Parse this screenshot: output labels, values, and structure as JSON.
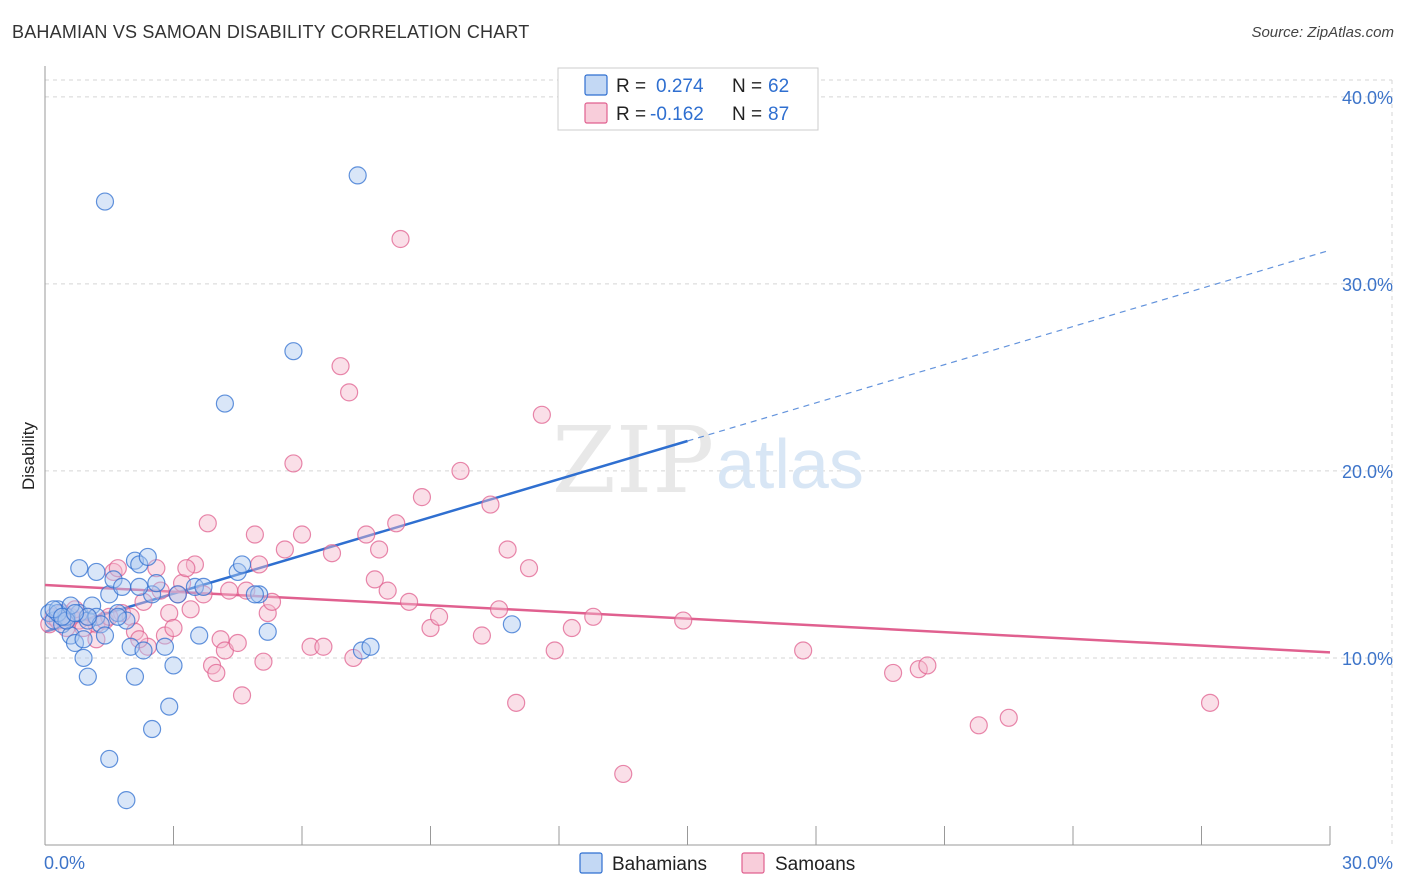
{
  "header": {
    "title": "BAHAMIAN VS SAMOAN DISABILITY CORRELATION CHART",
    "source": "Source: ZipAtlas.com"
  },
  "watermark": {
    "zip": "ZIP",
    "atlas": "atlas"
  },
  "colors": {
    "blue": "#2f6fd0",
    "blue_fill": "#aac8f0",
    "pink": "#e0608f",
    "pink_fill": "#f5b8cb",
    "grid": "#d5d5d5",
    "axis_label": "#3d74c9"
  },
  "legend": {
    "rows": [
      {
        "r_label": "R =",
        "r_value": "0.274",
        "n_label": "N =",
        "n_value": "62"
      },
      {
        "r_label": "R =",
        "r_value": "-0.162",
        "n_label": "N =",
        "n_value": "87"
      }
    ]
  },
  "chart_data": {
    "type": "scatter",
    "title": "BAHAMIAN VS SAMOAN DISABILITY CORRELATION CHART",
    "xlabel": "",
    "ylabel": "Disability",
    "xlim": [
      0,
      30
    ],
    "ylim": [
      0,
      40
    ],
    "x_ticks": [
      0,
      3,
      6,
      9,
      12,
      15,
      18,
      21,
      24,
      27,
      30
    ],
    "x_tick_labels_shown": [
      "0.0%",
      "30.0%"
    ],
    "y_ticks": [
      10,
      20,
      30,
      40
    ],
    "y_tick_labels": [
      "10.0%",
      "20.0%",
      "30.0%",
      "40.0%"
    ],
    "grid": true,
    "legend_position": "top-center",
    "series": [
      {
        "name": "Bahamians",
        "color": "#2f6fd0",
        "r": 0.274,
        "n": 62,
        "trend": {
          "x0": 0,
          "y0": 11.4,
          "x1": 15,
          "y1": 21.6,
          "x_end_dashed": 30,
          "y_end_dashed": 31.8
        },
        "points": [
          [
            0.1,
            12.4
          ],
          [
            0.2,
            12.0
          ],
          [
            0.3,
            12.6
          ],
          [
            0.4,
            11.8
          ],
          [
            0.5,
            12.2
          ],
          [
            0.6,
            11.2
          ],
          [
            0.7,
            10.8
          ],
          [
            0.8,
            12.4
          ],
          [
            0.9,
            11.0
          ],
          [
            1.0,
            12.0
          ],
          [
            0.8,
            14.8
          ],
          [
            1.1,
            12.8
          ],
          [
            1.2,
            12.2
          ],
          [
            1.3,
            11.8
          ],
          [
            1.4,
            11.2
          ],
          [
            1.5,
            13.4
          ],
          [
            1.6,
            14.2
          ],
          [
            1.7,
            12.4
          ],
          [
            1.8,
            13.8
          ],
          [
            1.9,
            12.0
          ],
          [
            2.0,
            10.6
          ],
          [
            2.1,
            15.2
          ],
          [
            2.2,
            15.0
          ],
          [
            2.3,
            10.4
          ],
          [
            2.4,
            15.4
          ],
          [
            2.5,
            13.4
          ],
          [
            2.6,
            14.0
          ],
          [
            2.8,
            10.6
          ],
          [
            3.0,
            9.6
          ],
          [
            3.5,
            13.8
          ],
          [
            3.6,
            11.2
          ],
          [
            4.2,
            23.6
          ],
          [
            4.5,
            14.6
          ],
          [
            4.6,
            15.0
          ],
          [
            5.0,
            13.4
          ],
          [
            5.2,
            11.4
          ],
          [
            5.8,
            26.4
          ],
          [
            7.3,
            35.8
          ],
          [
            1.4,
            34.4
          ],
          [
            1.0,
            9.0
          ],
          [
            1.5,
            4.6
          ],
          [
            1.9,
            2.4
          ],
          [
            2.5,
            6.2
          ],
          [
            2.9,
            7.4
          ],
          [
            2.1,
            9.0
          ],
          [
            0.9,
            10.0
          ],
          [
            7.4,
            10.4
          ],
          [
            7.6,
            10.6
          ],
          [
            10.9,
            11.8
          ],
          [
            0.3,
            12.4
          ],
          [
            0.5,
            12.0
          ],
          [
            1.2,
            14.6
          ],
          [
            1.7,
            12.2
          ],
          [
            3.1,
            13.4
          ],
          [
            4.9,
            13.4
          ],
          [
            0.2,
            12.6
          ],
          [
            0.6,
            12.8
          ],
          [
            1.0,
            12.2
          ],
          [
            0.4,
            12.2
          ],
          [
            0.7,
            12.4
          ],
          [
            2.2,
            13.8
          ],
          [
            3.7,
            13.8
          ]
        ]
      },
      {
        "name": "Samoans",
        "color": "#e0608f",
        "r": -0.162,
        "n": 87,
        "trend": {
          "x0": 0,
          "y0": 13.9,
          "x1": 30,
          "y1": 10.3
        },
        "points": [
          [
            0.1,
            11.8
          ],
          [
            0.2,
            12.2
          ],
          [
            0.3,
            12.0
          ],
          [
            0.4,
            12.4
          ],
          [
            0.5,
            11.6
          ],
          [
            0.6,
            12.2
          ],
          [
            0.8,
            12.0
          ],
          [
            1.0,
            12.2
          ],
          [
            1.2,
            11.8
          ],
          [
            1.4,
            12.0
          ],
          [
            1.6,
            14.6
          ],
          [
            1.8,
            12.4
          ],
          [
            2.0,
            12.2
          ],
          [
            2.1,
            11.4
          ],
          [
            2.3,
            13.0
          ],
          [
            2.4,
            10.6
          ],
          [
            2.6,
            14.8
          ],
          [
            2.8,
            11.2
          ],
          [
            2.9,
            12.4
          ],
          [
            3.0,
            11.6
          ],
          [
            3.1,
            13.4
          ],
          [
            3.2,
            14.0
          ],
          [
            3.4,
            12.6
          ],
          [
            3.5,
            15.0
          ],
          [
            3.7,
            13.4
          ],
          [
            3.8,
            17.2
          ],
          [
            3.9,
            9.6
          ],
          [
            4.0,
            9.2
          ],
          [
            4.1,
            11.0
          ],
          [
            4.2,
            10.4
          ],
          [
            4.3,
            13.6
          ],
          [
            4.5,
            10.8
          ],
          [
            4.6,
            8.0
          ],
          [
            4.7,
            13.6
          ],
          [
            4.9,
            16.6
          ],
          [
            5.0,
            15.0
          ],
          [
            5.1,
            9.8
          ],
          [
            5.2,
            12.4
          ],
          [
            5.3,
            13.0
          ],
          [
            5.6,
            15.8
          ],
          [
            5.8,
            20.4
          ],
          [
            6.0,
            16.6
          ],
          [
            6.2,
            10.6
          ],
          [
            6.5,
            10.6
          ],
          [
            6.7,
            15.6
          ],
          [
            6.9,
            25.6
          ],
          [
            7.1,
            24.2
          ],
          [
            7.2,
            10.0
          ],
          [
            7.5,
            16.6
          ],
          [
            7.7,
            14.2
          ],
          [
            7.8,
            15.8
          ],
          [
            8.0,
            13.6
          ],
          [
            8.2,
            17.2
          ],
          [
            8.3,
            32.4
          ],
          [
            8.5,
            13.0
          ],
          [
            8.8,
            18.6
          ],
          [
            9.0,
            11.6
          ],
          [
            9.2,
            12.2
          ],
          [
            9.7,
            20.0
          ],
          [
            10.2,
            11.2
          ],
          [
            10.4,
            18.2
          ],
          [
            10.6,
            12.6
          ],
          [
            10.8,
            15.8
          ],
          [
            11.0,
            7.6
          ],
          [
            11.3,
            14.8
          ],
          [
            11.6,
            23.0
          ],
          [
            11.9,
            10.4
          ],
          [
            12.3,
            11.6
          ],
          [
            12.8,
            12.2
          ],
          [
            13.5,
            3.8
          ],
          [
            14.9,
            12.0
          ],
          [
            17.7,
            10.4
          ],
          [
            19.8,
            9.2
          ],
          [
            20.4,
            9.4
          ],
          [
            20.6,
            9.6
          ],
          [
            21.8,
            6.4
          ],
          [
            22.5,
            6.8
          ],
          [
            27.2,
            7.6
          ],
          [
            1.2,
            11.0
          ],
          [
            2.2,
            11.0
          ],
          [
            3.3,
            14.8
          ],
          [
            0.9,
            11.6
          ],
          [
            1.7,
            14.8
          ],
          [
            0.5,
            12.0
          ],
          [
            0.7,
            12.6
          ],
          [
            1.5,
            12.2
          ],
          [
            2.7,
            13.6
          ]
        ]
      }
    ]
  },
  "bottom_legend": [
    {
      "label": "Bahamians"
    },
    {
      "label": "Samoans"
    }
  ]
}
